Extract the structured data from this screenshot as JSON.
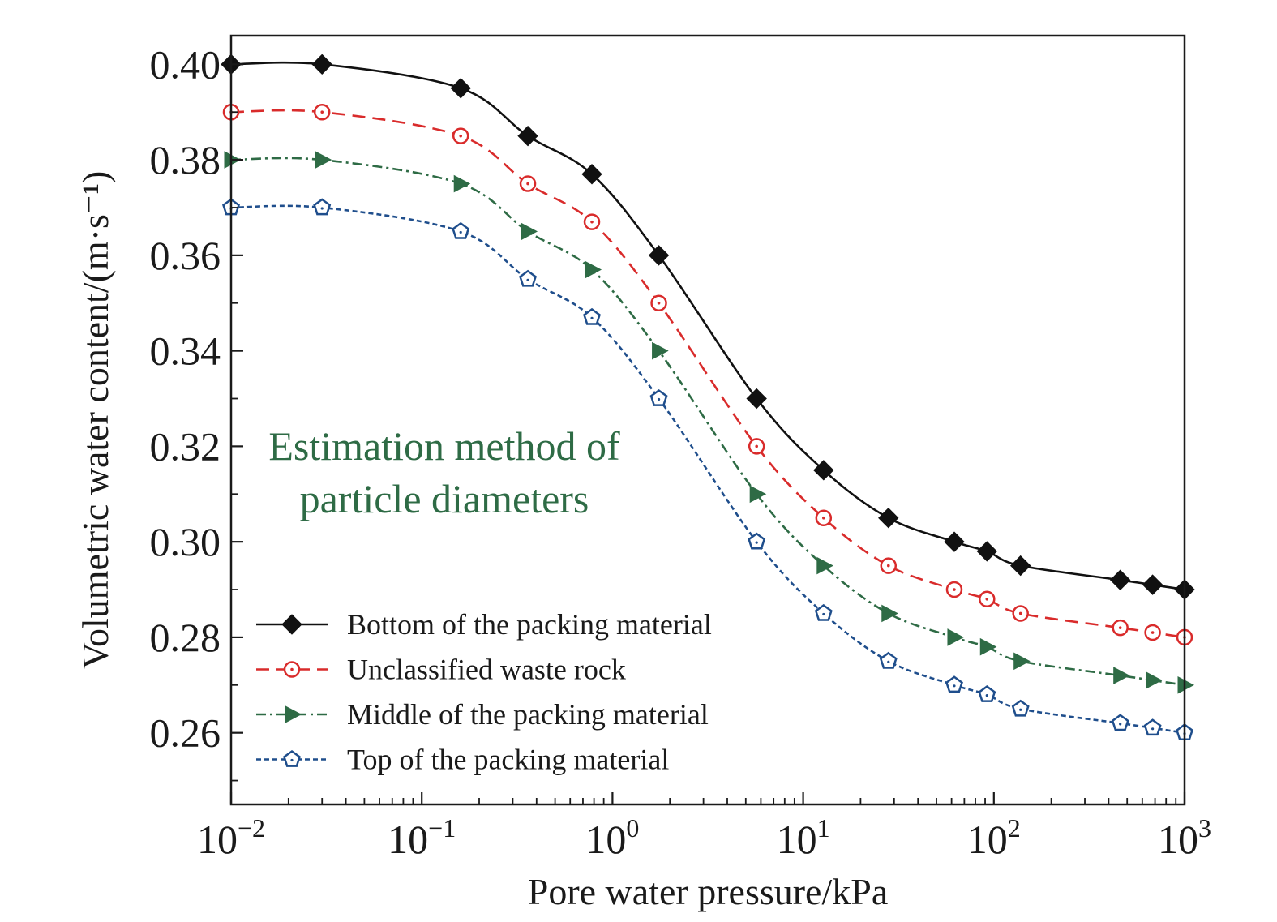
{
  "chart_data": {
    "type": "line",
    "xlabel": "Pore water pressure/kPa",
    "ylabel": "Volumetric water content/(m·s⁻¹)",
    "xscale": "log",
    "xlim": [
      0.01,
      1000
    ],
    "ylim": [
      0.245,
      0.406
    ],
    "xticks": [
      {
        "value": 0.01,
        "base": "10",
        "exp": "−2"
      },
      {
        "value": 0.1,
        "base": "10",
        "exp": "−1"
      },
      {
        "value": 1,
        "base": "10",
        "exp": "0"
      },
      {
        "value": 10,
        "base": "10",
        "exp": "1"
      },
      {
        "value": 100,
        "base": "10",
        "exp": "2"
      },
      {
        "value": 1000,
        "base": "10",
        "exp": "3"
      }
    ],
    "yticks": [
      {
        "value": 0.26,
        "label": "0.26"
      },
      {
        "value": 0.28,
        "label": "0.28"
      },
      {
        "value": 0.3,
        "label": "0.30"
      },
      {
        "value": 0.32,
        "label": "0.32"
      },
      {
        "value": 0.34,
        "label": "0.34"
      },
      {
        "value": 0.36,
        "label": "0.36"
      },
      {
        "value": 0.38,
        "label": "0.38"
      },
      {
        "value": 0.4,
        "label": "0.40"
      }
    ],
    "annotation": [
      "Estimation method of",
      "particle diameters"
    ],
    "annotation_color": "#2e6b45",
    "legend_position": "lower-left",
    "x": [
      0.01,
      0.03,
      0.16,
      0.36,
      0.78,
      1.75,
      5.7,
      12.8,
      28,
      62,
      92,
      138,
      460,
      680,
      1000
    ],
    "series": [
      {
        "name": "Bottom of the packing material",
        "color": "#111111",
        "dash": "solid",
        "marker": "diamond",
        "values": [
          0.4,
          0.4,
          0.395,
          0.385,
          0.377,
          0.36,
          0.33,
          0.315,
          0.305,
          0.3,
          0.298,
          0.295,
          0.292,
          0.291,
          0.29
        ]
      },
      {
        "name": "Unclassified waste rock",
        "color": "#d92b2b",
        "dash": "dashed",
        "marker": "circle-dot",
        "values": [
          0.39,
          0.39,
          0.385,
          0.375,
          0.367,
          0.35,
          0.32,
          0.305,
          0.295,
          0.29,
          0.288,
          0.285,
          0.282,
          0.281,
          0.28
        ]
      },
      {
        "name": "Middle of the packing material",
        "color": "#2e6b45",
        "dash": "dashdot",
        "marker": "triangle-right",
        "values": [
          0.38,
          0.38,
          0.375,
          0.365,
          0.357,
          0.34,
          0.31,
          0.295,
          0.285,
          0.28,
          0.278,
          0.275,
          0.272,
          0.271,
          0.27
        ]
      },
      {
        "name": "Top of the packing material",
        "color": "#1f4e8c",
        "dash": "dotted",
        "marker": "pentagon-dot",
        "values": [
          0.37,
          0.37,
          0.365,
          0.355,
          0.347,
          0.33,
          0.3,
          0.285,
          0.275,
          0.27,
          0.268,
          0.265,
          0.262,
          0.261,
          0.26
        ]
      }
    ]
  }
}
